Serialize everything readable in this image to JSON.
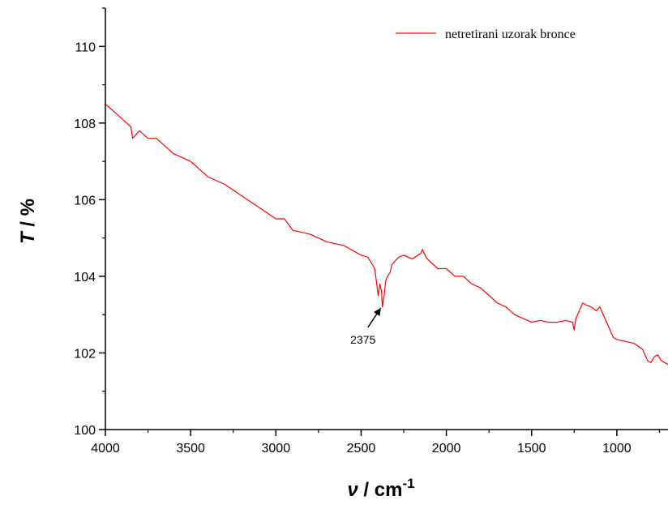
{
  "chart_data": {
    "type": "line",
    "xlabel": "ν / cm",
    "xlabel_superscript": "-1",
    "ylabel": "T / %",
    "x_reversed": true,
    "xlim": [
      4000,
      700
    ],
    "ylim": [
      100,
      111
    ],
    "x_ticks": [
      "4000",
      "3500",
      "3000",
      "2500",
      "2000",
      "1500",
      "1000"
    ],
    "y_ticks": [
      "100",
      "102",
      "104",
      "106",
      "108",
      "110"
    ],
    "grid": false,
    "legend": "top-right",
    "series": [
      {
        "name": "netretirani uzorak bronce",
        "color": "#ff0000",
        "x": [
          4000,
          3950,
          3900,
          3850,
          3840,
          3800,
          3750,
          3700,
          3650,
          3600,
          3500,
          3400,
          3300,
          3200,
          3100,
          3000,
          2950,
          2900,
          2800,
          2700,
          2600,
          2500,
          2460,
          2420,
          2400,
          2390,
          2380,
          2375,
          2365,
          2355,
          2345,
          2330,
          2320,
          2300,
          2280,
          2250,
          2200,
          2150,
          2140,
          2120,
          2100,
          2050,
          2000,
          1950,
          1900,
          1850,
          1800,
          1750,
          1700,
          1650,
          1600,
          1550,
          1500,
          1450,
          1400,
          1350,
          1300,
          1260,
          1250,
          1240,
          1220,
          1200,
          1180,
          1150,
          1120,
          1100,
          1080,
          1060,
          1040,
          1020,
          1000,
          950,
          900,
          850,
          820,
          800,
          780,
          760,
          740,
          720,
          700
        ],
        "y": [
          108.5,
          108.3,
          108.1,
          107.9,
          107.6,
          107.8,
          107.6,
          107.6,
          107.4,
          107.2,
          107.0,
          106.6,
          106.4,
          106.1,
          105.8,
          105.5,
          105.5,
          105.2,
          105.1,
          104.9,
          104.8,
          104.55,
          104.5,
          104.2,
          103.5,
          103.8,
          103.6,
          103.2,
          103.5,
          103.9,
          104.0,
          104.1,
          104.3,
          104.4,
          104.5,
          104.55,
          104.45,
          104.6,
          104.7,
          104.5,
          104.4,
          104.2,
          104.2,
          104.0,
          104.0,
          103.8,
          103.7,
          103.5,
          103.3,
          103.2,
          103.0,
          102.9,
          102.8,
          102.85,
          102.8,
          102.8,
          102.85,
          102.8,
          102.6,
          102.9,
          103.1,
          103.3,
          103.25,
          103.2,
          103.1,
          103.2,
          103.0,
          102.8,
          102.6,
          102.4,
          102.35,
          102.3,
          102.25,
          102.1,
          101.8,
          101.75,
          101.9,
          101.95,
          101.8,
          101.75,
          101.7
        ]
      }
    ],
    "annotations": [
      {
        "text": "2375",
        "x": 2375,
        "y": 103.3
      }
    ]
  }
}
